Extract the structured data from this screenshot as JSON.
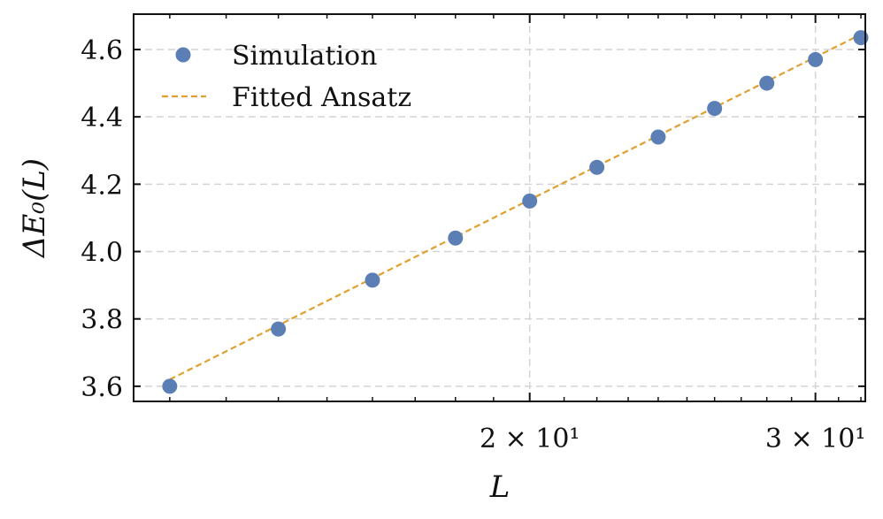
{
  "chart_data": {
    "type": "scatter",
    "xscale": "log",
    "xlabel": "L",
    "ylabel": "ΔE₀(L)",
    "xlim": [
      11.4,
      32.2
    ],
    "ylim": [
      3.555,
      4.705
    ],
    "grid": true,
    "legend_position": "top-left",
    "x_ticks": [
      {
        "value": 20,
        "label": "2 × 10¹"
      },
      {
        "value": 30,
        "label": "3 × 10¹"
      }
    ],
    "y_ticks": [
      {
        "value": 3.6,
        "label": "3.6"
      },
      {
        "value": 3.8,
        "label": "3.8"
      },
      {
        "value": 4.0,
        "label": "4.0"
      },
      {
        "value": 4.2,
        "label": "4.2"
      },
      {
        "value": 4.4,
        "label": "4.4"
      },
      {
        "value": 4.6,
        "label": "4.6"
      }
    ],
    "series": [
      {
        "name": "Simulation",
        "kind": "scatter",
        "color": "#5b7fb5",
        "x": [
          12.0,
          14.0,
          16.0,
          18.0,
          20.0,
          22.0,
          24.0,
          26.0,
          28.0,
          30.0,
          32.0
        ],
        "y": [
          3.6,
          3.77,
          3.915,
          4.04,
          4.15,
          4.25,
          4.34,
          4.425,
          4.5,
          4.57,
          4.635
        ]
      },
      {
        "name": "Fitted Ansatz",
        "kind": "line",
        "style": "dashed",
        "color": "#e0a030",
        "x": [
          12.0,
          32.0
        ],
        "y": [
          3.62,
          4.645
        ]
      }
    ]
  }
}
